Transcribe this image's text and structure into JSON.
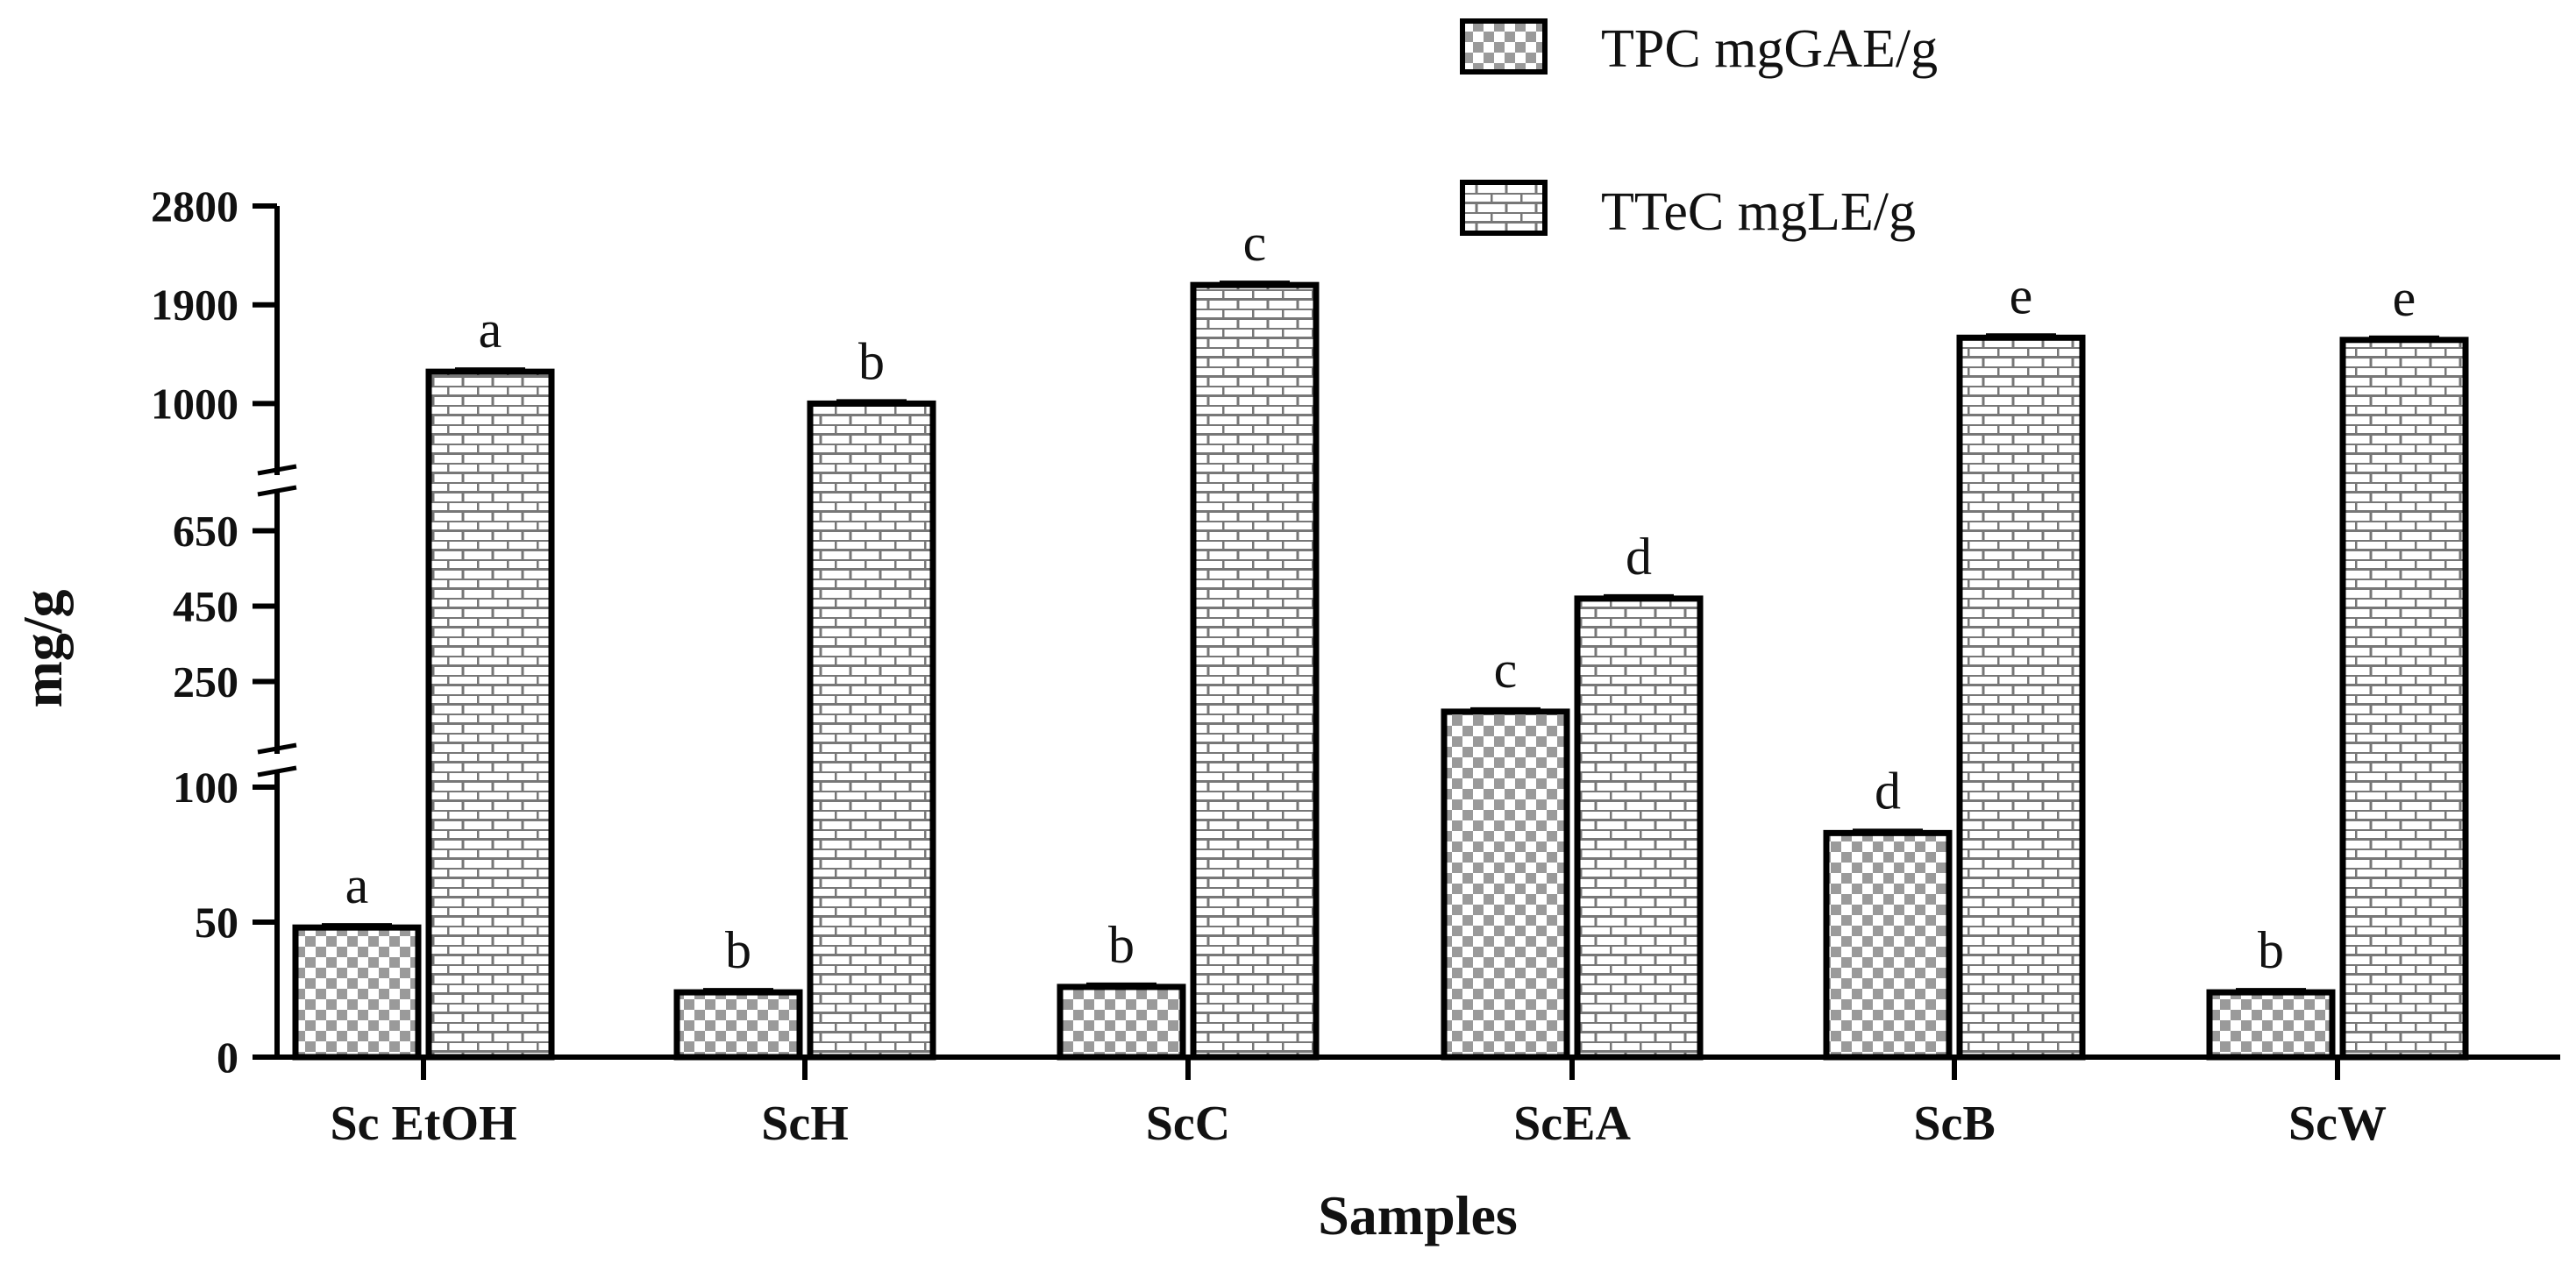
{
  "chart_data": {
    "type": "bar",
    "title": "",
    "xlabel": "Samples",
    "ylabel": "mg/g",
    "categories": [
      "Sc EtOH",
      "ScH",
      "ScC",
      "ScEA",
      "ScB",
      "ScW"
    ],
    "series": [
      {
        "name": "TPC mgGAE/g",
        "pattern": "checker",
        "values": [
          48,
          24,
          26,
          170,
          83,
          24
        ],
        "significance": [
          "a",
          "b",
          "b",
          "c",
          "d",
          "b"
        ]
      },
      {
        "name": "TTeC mgLE/g",
        "pattern": "brick",
        "values": [
          1290,
          1000,
          2080,
          470,
          1600,
          1580
        ],
        "significance": [
          "a",
          "b",
          "c",
          "d",
          "e",
          "e"
        ]
      }
    ],
    "y_axis": {
      "broken": true,
      "segments": [
        {
          "range": [
            0,
            100
          ],
          "ticks": [
            0,
            50,
            100
          ]
        },
        {
          "range": [
            100,
            700
          ],
          "ticks": [
            250,
            450,
            650
          ]
        },
        {
          "range": [
            700,
            2800
          ],
          "ticks": [
            1000,
            1900,
            2800
          ]
        }
      ]
    },
    "legend_position": "top-right",
    "colors": {
      "stroke": "#000000",
      "fill_light": "#ffffff",
      "fill_dark": "#9a9a9a",
      "background": "#ffffff"
    }
  }
}
